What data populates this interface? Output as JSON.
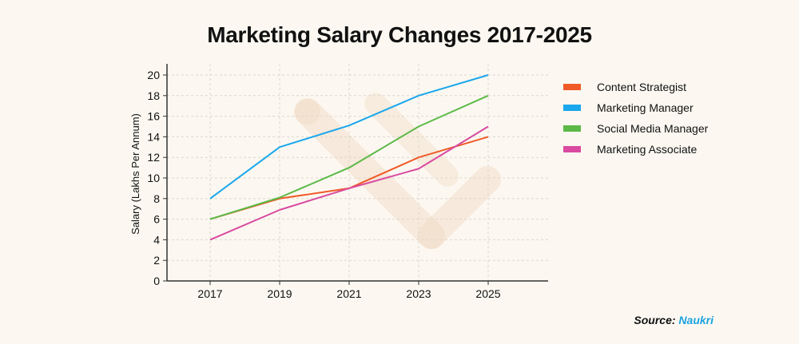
{
  "source": {
    "label": "Source:",
    "name": "Naukri"
  },
  "colors": {
    "background": "#fcf8f1",
    "axis": "#333333",
    "grid": "#dcd8d0",
    "watermark": "#f2ddc8"
  },
  "chart_data": {
    "type": "line",
    "title": "Marketing Salary Changes 2017-2025",
    "xlabel": "",
    "ylabel": "Salary (Lakhs Per Annum)",
    "x": [
      "2017",
      "2019",
      "2021",
      "2023",
      "2025"
    ],
    "ylim": [
      0,
      20
    ],
    "yticks": [
      0,
      2,
      4,
      6,
      8,
      10,
      12,
      14,
      16,
      18,
      20
    ],
    "grid": true,
    "legend_position": "right",
    "series": [
      {
        "name": "Content Strategist",
        "color": "#f05a28",
        "values": [
          6,
          8,
          9,
          12,
          14
        ]
      },
      {
        "name": "Marketing Manager",
        "color": "#1aa7ec",
        "values": [
          8,
          13,
          15.1,
          18,
          20
        ]
      },
      {
        "name": "Social Media Manager",
        "color": "#5cb947",
        "values": [
          6,
          8.1,
          11,
          15,
          18
        ]
      },
      {
        "name": "Marketing Associate",
        "color": "#d94aa0",
        "values": [
          4,
          6.9,
          9,
          10.9,
          15
        ]
      }
    ]
  }
}
